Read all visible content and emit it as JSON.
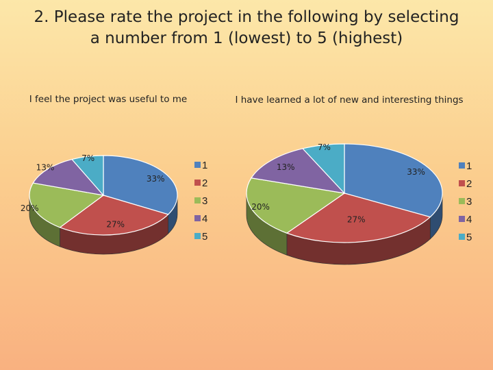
{
  "slide": {
    "title_line1": "2. Please rate the project in the following by selecting",
    "title_line2": "a number from 1 (lowest) to 5 (highest)"
  },
  "colors": [
    "#4f81bd",
    "#c0504d",
    "#9bbb59",
    "#8064a2",
    "#4bacc6"
  ],
  "chart_data": [
    {
      "type": "pie",
      "title": "I feel the project was useful to me",
      "categories": [
        "1",
        "2",
        "3",
        "4",
        "5"
      ],
      "values": [
        33,
        27,
        20,
        13,
        7
      ],
      "labels": [
        "33%",
        "27%",
        "20%",
        "13%",
        "7%"
      ],
      "legend": [
        "1",
        "2",
        "3",
        "4",
        "5"
      ],
      "legend_position": "right",
      "style": "3d"
    },
    {
      "type": "pie",
      "title": "I have learned a lot of new and interesting things",
      "categories": [
        "1",
        "2",
        "3",
        "4",
        "5"
      ],
      "values": [
        33,
        27,
        20,
        13,
        7
      ],
      "labels": [
        "33%",
        "27%",
        "20%",
        "13%",
        "7%"
      ],
      "legend": [
        "1",
        "2",
        "3",
        "4",
        "5"
      ],
      "legend_position": "right",
      "style": "3d"
    }
  ]
}
